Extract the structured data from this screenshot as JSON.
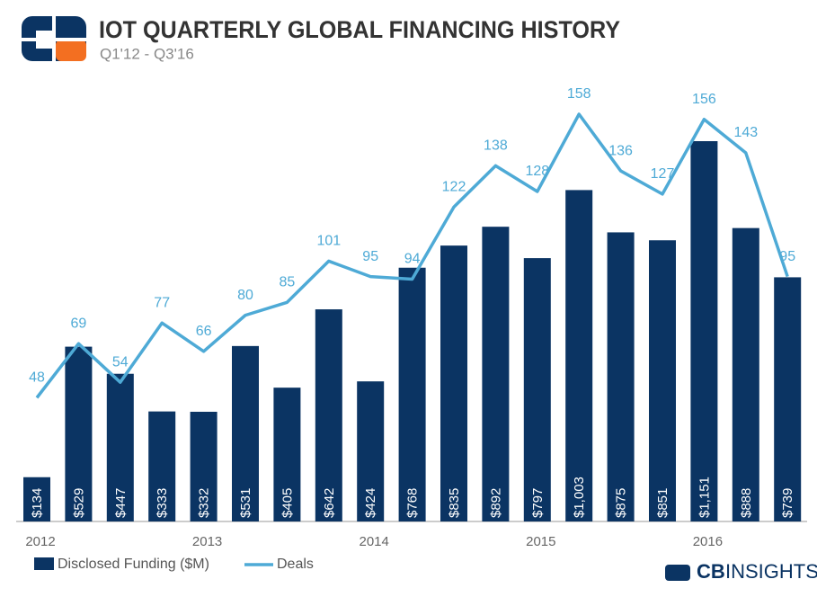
{
  "chart_data": {
    "type": "bar_line",
    "title": "IOT QUARTERLY GLOBAL FINANCING HISTORY",
    "subtitle": "Q1'12 - Q3'16",
    "categories": [
      "2012",
      null,
      null,
      null,
      "2013",
      null,
      null,
      null,
      "2014",
      null,
      null,
      null,
      "2015",
      null,
      null,
      null,
      "2016",
      null,
      null
    ],
    "series": [
      {
        "name": "Disclosed Funding ($M)",
        "color": "#0b3463",
        "kind": "bar",
        "values": [
          134,
          529,
          447,
          333,
          332,
          531,
          405,
          642,
          424,
          768,
          835,
          892,
          797,
          1003,
          875,
          851,
          1151,
          888,
          739
        ],
        "value_labels": [
          "$134",
          "$529",
          "$447",
          "$333",
          "$332",
          "$531",
          "$405",
          "$642",
          "$424",
          "$768",
          "$835",
          "$892",
          "$797",
          "$1,003",
          "$875",
          "$851",
          "$1,151",
          "$888",
          "$739"
        ]
      },
      {
        "name": "Deals",
        "color": "#4eaad6",
        "kind": "line",
        "values": [
          48,
          69,
          54,
          77,
          66,
          80,
          85,
          101,
          95,
          94,
          122,
          138,
          128,
          158,
          136,
          127,
          156,
          143,
          95
        ]
      }
    ],
    "brand_bold": "CB",
    "brand": "INSIGHTS"
  }
}
